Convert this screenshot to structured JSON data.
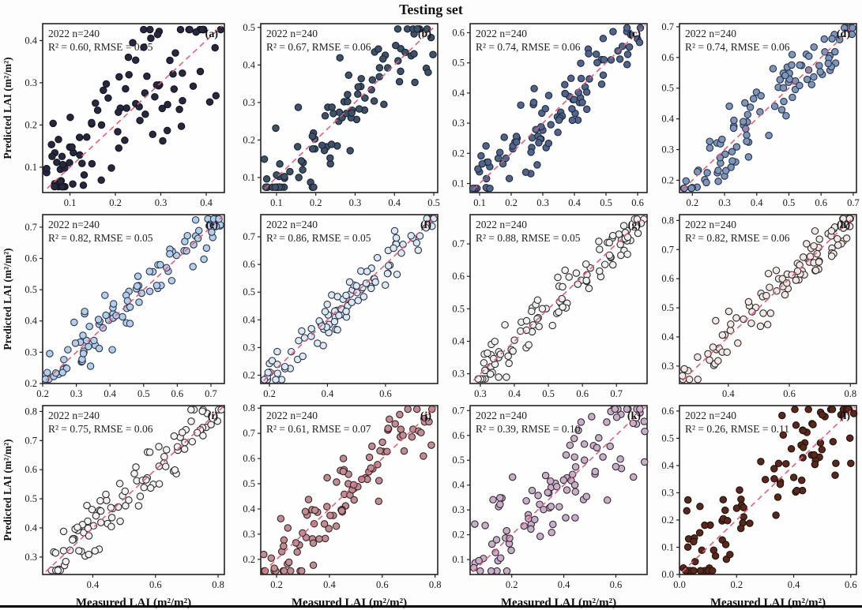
{
  "figure": {
    "title": "Testing set",
    "bottom_rule_color": "#000000"
  },
  "chart_data": {
    "type": "scatter",
    "title": "Testing set",
    "x_label": "Measured LAI (m²/m²)",
    "y_label": "Predicted LAI (m²/m²)",
    "grid": false,
    "legend": "none",
    "reference_line": {
      "meaning": "1:1 dashed line",
      "style": "dashed",
      "color": "#e0607d"
    },
    "panel_border_color": "#222222",
    "panels": [
      {
        "key": "a",
        "label": "(a)",
        "sample_text": "2022 n=240",
        "n": 240,
        "r2": 0.6,
        "rmse": 0.05,
        "stats_text": "R² = 0.60, RMSE = 0.05",
        "x_range": [
          0.04,
          0.44
        ],
        "y_range": [
          0.04,
          0.44
        ],
        "x_ticks": [
          0.1,
          0.2,
          0.3,
          0.4
        ],
        "y_ticks": [
          0.1,
          0.2,
          0.3,
          0.4
        ],
        "dot_color": "#262840",
        "dot_edge": "#15151f",
        "points_shown": 100,
        "noise": 0.24,
        "skew": 1.35,
        "seed": 7
      },
      {
        "key": "b",
        "label": "(b)",
        "sample_text": "2022 n=240",
        "n": 240,
        "r2": 0.67,
        "rmse": 0.06,
        "stats_text": "R² = 0.67, RMSE = 0.06",
        "x_range": [
          0.06,
          0.51
        ],
        "y_range": [
          0.06,
          0.51
        ],
        "x_ticks": [
          0.1,
          0.2,
          0.3,
          0.4,
          0.5
        ],
        "y_ticks": [
          0.1,
          0.2,
          0.3,
          0.4,
          0.5
        ],
        "dot_color": "#3d5168",
        "dot_edge": "#1a2230",
        "points_shown": 100,
        "noise": 0.17,
        "skew": 1.2,
        "seed": 13
      },
      {
        "key": "c",
        "label": "(c)",
        "sample_text": "2022 n=240",
        "n": 240,
        "r2": 0.74,
        "rmse": 0.06,
        "stats_text": "R² = 0.74, RMSE = 0.06",
        "x_range": [
          0.07,
          0.63
        ],
        "y_range": [
          0.07,
          0.63
        ],
        "x_ticks": [
          0.1,
          0.2,
          0.3,
          0.4,
          0.5,
          0.6
        ],
        "y_ticks": [
          0.1,
          0.2,
          0.3,
          0.4,
          0.5,
          0.6
        ],
        "dot_color": "#51648a",
        "dot_edge": "#202a3e",
        "points_shown": 100,
        "noise": 0.18,
        "skew": 1.1,
        "seed": 21
      },
      {
        "key": "d",
        "label": "(d)",
        "sample_text": "2022 n=240",
        "n": 240,
        "r2": 0.74,
        "rmse": 0.06,
        "stats_text": "R² = 0.74, RMSE = 0.06",
        "x_range": [
          0.16,
          0.71
        ],
        "y_range": [
          0.16,
          0.71
        ],
        "x_ticks": [
          0.2,
          0.3,
          0.4,
          0.5,
          0.6,
          0.7
        ],
        "y_ticks": [
          0.2,
          0.3,
          0.4,
          0.5,
          0.6,
          0.7
        ],
        "dot_color": "#7e96ba",
        "dot_edge": "#27314a",
        "points_shown": 100,
        "noise": 0.16,
        "skew": 1.0,
        "seed": 29
      },
      {
        "key": "e",
        "label": "(e)",
        "sample_text": "2022 n=240",
        "n": 240,
        "r2": 0.82,
        "rmse": 0.05,
        "stats_text": "R² = 0.82, RMSE = 0.05",
        "x_range": [
          0.2,
          0.74
        ],
        "y_range": [
          0.2,
          0.74
        ],
        "x_ticks": [
          0.2,
          0.3,
          0.4,
          0.5,
          0.6,
          0.7
        ],
        "y_ticks": [
          0.2,
          0.3,
          0.4,
          0.5,
          0.6,
          0.7
        ],
        "dot_color": "#b5cee8",
        "dot_edge": "#2b3550",
        "points_shown": 100,
        "noise": 0.14,
        "skew": 1.0,
        "seed": 37
      },
      {
        "key": "f",
        "label": "(f)",
        "sample_text": "2022 n=240",
        "n": 240,
        "r2": 0.86,
        "rmse": 0.05,
        "stats_text": "R² = 0.86, RMSE = 0.05",
        "x_range": [
          0.17,
          0.78
        ],
        "y_range": [
          0.17,
          0.78
        ],
        "x_ticks": [
          0.2,
          0.4,
          0.6
        ],
        "y_ticks": [
          0.2,
          0.3,
          0.4,
          0.5,
          0.6,
          0.7
        ],
        "dot_color": "#dce9f4",
        "dot_edge": "#2c3245",
        "points_shown": 100,
        "noise": 0.11,
        "skew": 1.0,
        "seed": 45
      },
      {
        "key": "g",
        "label": "(g)",
        "sample_text": "2022 n=240",
        "n": 240,
        "r2": 0.88,
        "rmse": 0.05,
        "stats_text": "R² = 0.88, RMSE = 0.05",
        "x_range": [
          0.27,
          0.79
        ],
        "y_range": [
          0.27,
          0.79
        ],
        "x_ticks": [
          0.3,
          0.4,
          0.5,
          0.6,
          0.7
        ],
        "y_ticks": [
          0.3,
          0.4,
          0.5,
          0.6,
          0.7
        ],
        "dot_color": "#f2f0ee",
        "dot_edge": "#2b2b33",
        "points_shown": 100,
        "noise": 0.1,
        "skew": 1.0,
        "seed": 53
      },
      {
        "key": "h",
        "label": "(h)",
        "sample_text": "2022 n=240",
        "n": 240,
        "r2": 0.82,
        "rmse": 0.06,
        "stats_text": "R² = 0.82, RMSE = 0.06",
        "x_range": [
          0.24,
          0.82
        ],
        "y_range": [
          0.24,
          0.82
        ],
        "x_ticks": [
          0.4,
          0.6,
          0.8
        ],
        "y_ticks": [
          0.3,
          0.4,
          0.5,
          0.6,
          0.7,
          0.8
        ],
        "dot_color": "#f2e9e5",
        "dot_edge": "#2e2a2c",
        "points_shown": 100,
        "noise": 0.13,
        "skew": 1.0,
        "seed": 61
      },
      {
        "key": "i",
        "label": "(i)",
        "sample_text": "2022 n=240",
        "n": 240,
        "r2": 0.75,
        "rmse": 0.06,
        "stats_text": "R² = 0.75, RMSE = 0.06",
        "x_range": [
          0.24,
          0.82
        ],
        "y_range": [
          0.24,
          0.82
        ],
        "x_ticks": [
          0.4,
          0.6,
          0.8
        ],
        "y_ticks": [
          0.3,
          0.4,
          0.5,
          0.6,
          0.7,
          0.8
        ],
        "dot_color": "#f4f1ef",
        "dot_edge": "#2b2b30",
        "points_shown": 100,
        "noise": 0.14,
        "skew": 1.0,
        "seed": 69
      },
      {
        "key": "j",
        "label": "(j)",
        "sample_text": "2022 n=240",
        "n": 240,
        "r2": 0.61,
        "rmse": 0.07,
        "stats_text": "R² = 0.61, RMSE = 0.07",
        "x_range": [
          0.14,
          0.81
        ],
        "y_range": [
          0.14,
          0.81
        ],
        "x_ticks": [
          0.2,
          0.4,
          0.6,
          0.8
        ],
        "y_ticks": [
          0.2,
          0.3,
          0.4,
          0.5,
          0.6,
          0.7,
          0.8
        ],
        "dot_color": "#bf8e94",
        "dot_edge": "#3a2326",
        "points_shown": 100,
        "noise": 0.22,
        "skew": 1.05,
        "seed": 77
      },
      {
        "key": "k",
        "label": "(k)",
        "sample_text": "2022 n=240",
        "n": 240,
        "r2": 0.39,
        "rmse": 0.1,
        "stats_text": "R² = 0.39, RMSE = 0.10",
        "x_range": [
          0.04,
          0.72
        ],
        "y_range": [
          0.04,
          0.72
        ],
        "x_ticks": [
          0.2,
          0.4,
          0.6
        ],
        "y_ticks": [
          0.1,
          0.2,
          0.3,
          0.4,
          0.5,
          0.6,
          0.7
        ],
        "dot_color": "#c9aec8",
        "dot_edge": "#332a35",
        "points_shown": 100,
        "noise": 0.3,
        "skew": 1.0,
        "seed": 85
      },
      {
        "key": "l",
        "label": "(l)",
        "sample_text": "2022 n=240",
        "n": 240,
        "r2": 0.26,
        "rmse": 0.11,
        "stats_text": "R² = 0.26, RMSE = 0.11",
        "x_range": [
          0.0,
          0.62
        ],
        "y_range": [
          0.0,
          0.62
        ],
        "x_ticks": [
          0.0,
          0.2,
          0.4,
          0.6
        ],
        "y_ticks": [
          0.0,
          0.1,
          0.2,
          0.3,
          0.4,
          0.5,
          0.6
        ],
        "dot_color": "#57291e",
        "dot_edge": "#23100a",
        "points_shown": 100,
        "noise": 0.34,
        "skew": 1.0,
        "seed": 93
      }
    ]
  }
}
